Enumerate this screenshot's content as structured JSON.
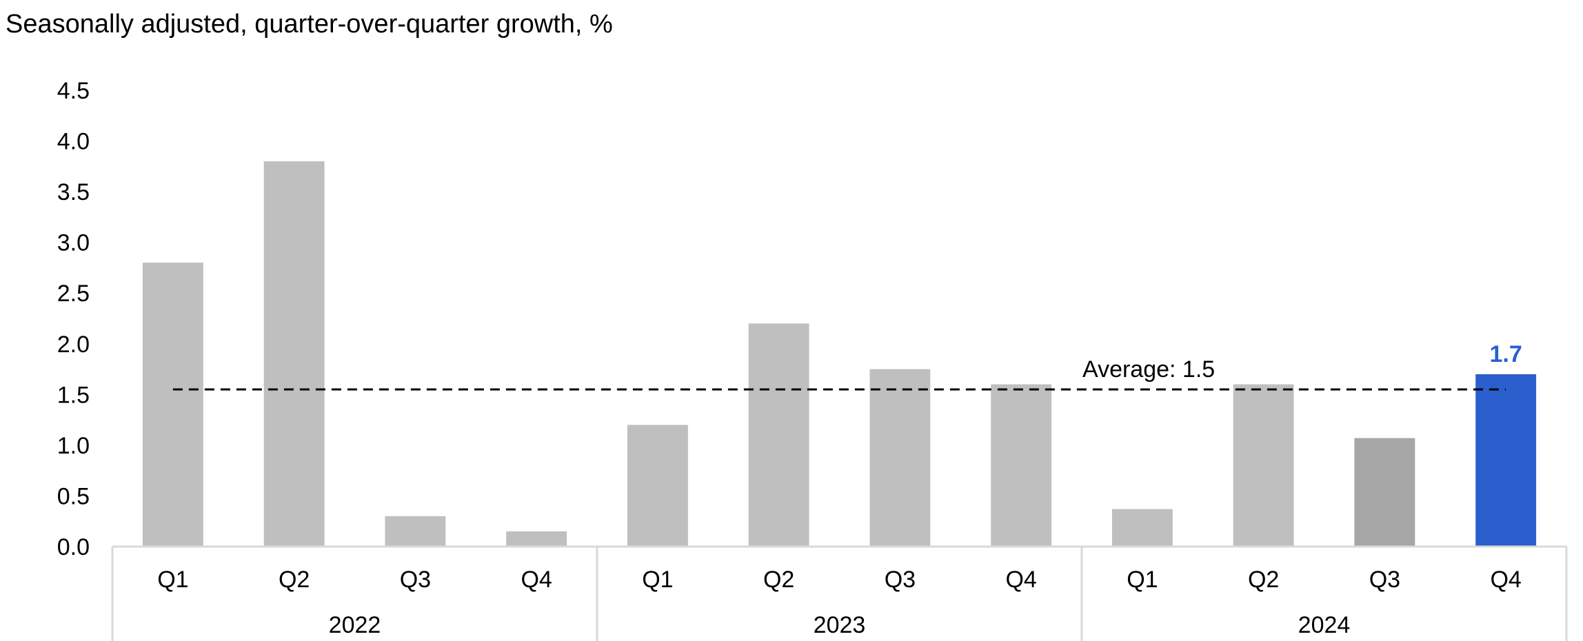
{
  "chart_data": {
    "type": "bar",
    "title": "Seasonally adjusted, quarter-over-quarter growth, %",
    "xlabel": "",
    "ylabel": "",
    "ylim": [
      0,
      4.5
    ],
    "yticks": [
      "0.0",
      "0.5",
      "1.0",
      "1.5",
      "2.0",
      "2.5",
      "3.0",
      "3.5",
      "4.0",
      "4.5"
    ],
    "groups": [
      {
        "label": "2022",
        "categories": [
          "Q1",
          "Q2",
          "Q3",
          "Q4"
        ],
        "values": [
          2.8,
          3.8,
          0.3,
          0.15
        ]
      },
      {
        "label": "2023",
        "categories": [
          "Q1",
          "Q2",
          "Q3",
          "Q4"
        ],
        "values": [
          1.2,
          2.2,
          1.75,
          1.6
        ]
      },
      {
        "label": "2024",
        "categories": [
          "Q1",
          "Q2",
          "Q3",
          "Q4"
        ],
        "values": [
          0.37,
          1.6,
          1.07,
          1.7
        ]
      }
    ],
    "bar_colors": [
      "#bfbfbf",
      "#bfbfbf",
      "#bfbfbf",
      "#bfbfbf",
      "#bfbfbf",
      "#bfbfbf",
      "#bfbfbf",
      "#bfbfbf",
      "#bfbfbf",
      "#bfbfbf",
      "#a6a6a6",
      "#2b5fce"
    ],
    "data_labels": [
      {
        "index": 11,
        "text": "1.7",
        "color": "#2b5fce"
      }
    ],
    "average": {
      "value": 1.55,
      "label": "Average: 1.5",
      "style": "dashed"
    },
    "grid": false,
    "legend": "none"
  }
}
